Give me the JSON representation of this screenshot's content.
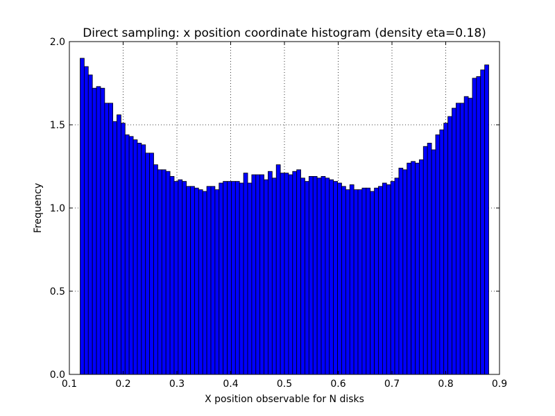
{
  "chart_data": {
    "type": "bar",
    "title": "Direct sampling: x position coordinate histogram (density eta=0.18)",
    "xlabel": "X position observable for N disks",
    "ylabel": "Frequency",
    "xlim": [
      0.1,
      0.9
    ],
    "ylim": [
      0.0,
      2.0
    ],
    "xticks": [
      0.1,
      0.2,
      0.3,
      0.4,
      0.5,
      0.6,
      0.7,
      0.8,
      0.9
    ],
    "xtick_labels": [
      "0.1",
      "0.2",
      "0.3",
      "0.4",
      "0.5",
      "0.6",
      "0.7",
      "0.8",
      "0.9"
    ],
    "yticks": [
      0.0,
      0.5,
      1.0,
      1.5,
      2.0
    ],
    "ytick_labels": [
      "0.0",
      "0.5",
      "1.0",
      "1.5",
      "2.0"
    ],
    "grid": true,
    "bar_color": "#0000ff",
    "edge_color": "#000000",
    "bin_start": 0.12,
    "bin_end": 0.88,
    "values": [
      1.9,
      1.85,
      1.8,
      1.72,
      1.73,
      1.72,
      1.63,
      1.63,
      1.52,
      1.56,
      1.51,
      1.44,
      1.43,
      1.41,
      1.39,
      1.38,
      1.33,
      1.33,
      1.26,
      1.23,
      1.23,
      1.22,
      1.19,
      1.16,
      1.17,
      1.16,
      1.13,
      1.13,
      1.12,
      1.11,
      1.1,
      1.13,
      1.13,
      1.11,
      1.15,
      1.16,
      1.16,
      1.16,
      1.16,
      1.15,
      1.21,
      1.15,
      1.2,
      1.2,
      1.2,
      1.17,
      1.22,
      1.18,
      1.26,
      1.21,
      1.21,
      1.2,
      1.22,
      1.23,
      1.18,
      1.16,
      1.19,
      1.19,
      1.18,
      1.19,
      1.18,
      1.17,
      1.16,
      1.15,
      1.13,
      1.11,
      1.14,
      1.11,
      1.11,
      1.12,
      1.12,
      1.1,
      1.12,
      1.13,
      1.15,
      1.14,
      1.16,
      1.18,
      1.24,
      1.23,
      1.27,
      1.28,
      1.27,
      1.29,
      1.37,
      1.39,
      1.35,
      1.44,
      1.47,
      1.51,
      1.55,
      1.6,
      1.63,
      1.63,
      1.67,
      1.66,
      1.78,
      1.79,
      1.83,
      1.86
    ]
  }
}
